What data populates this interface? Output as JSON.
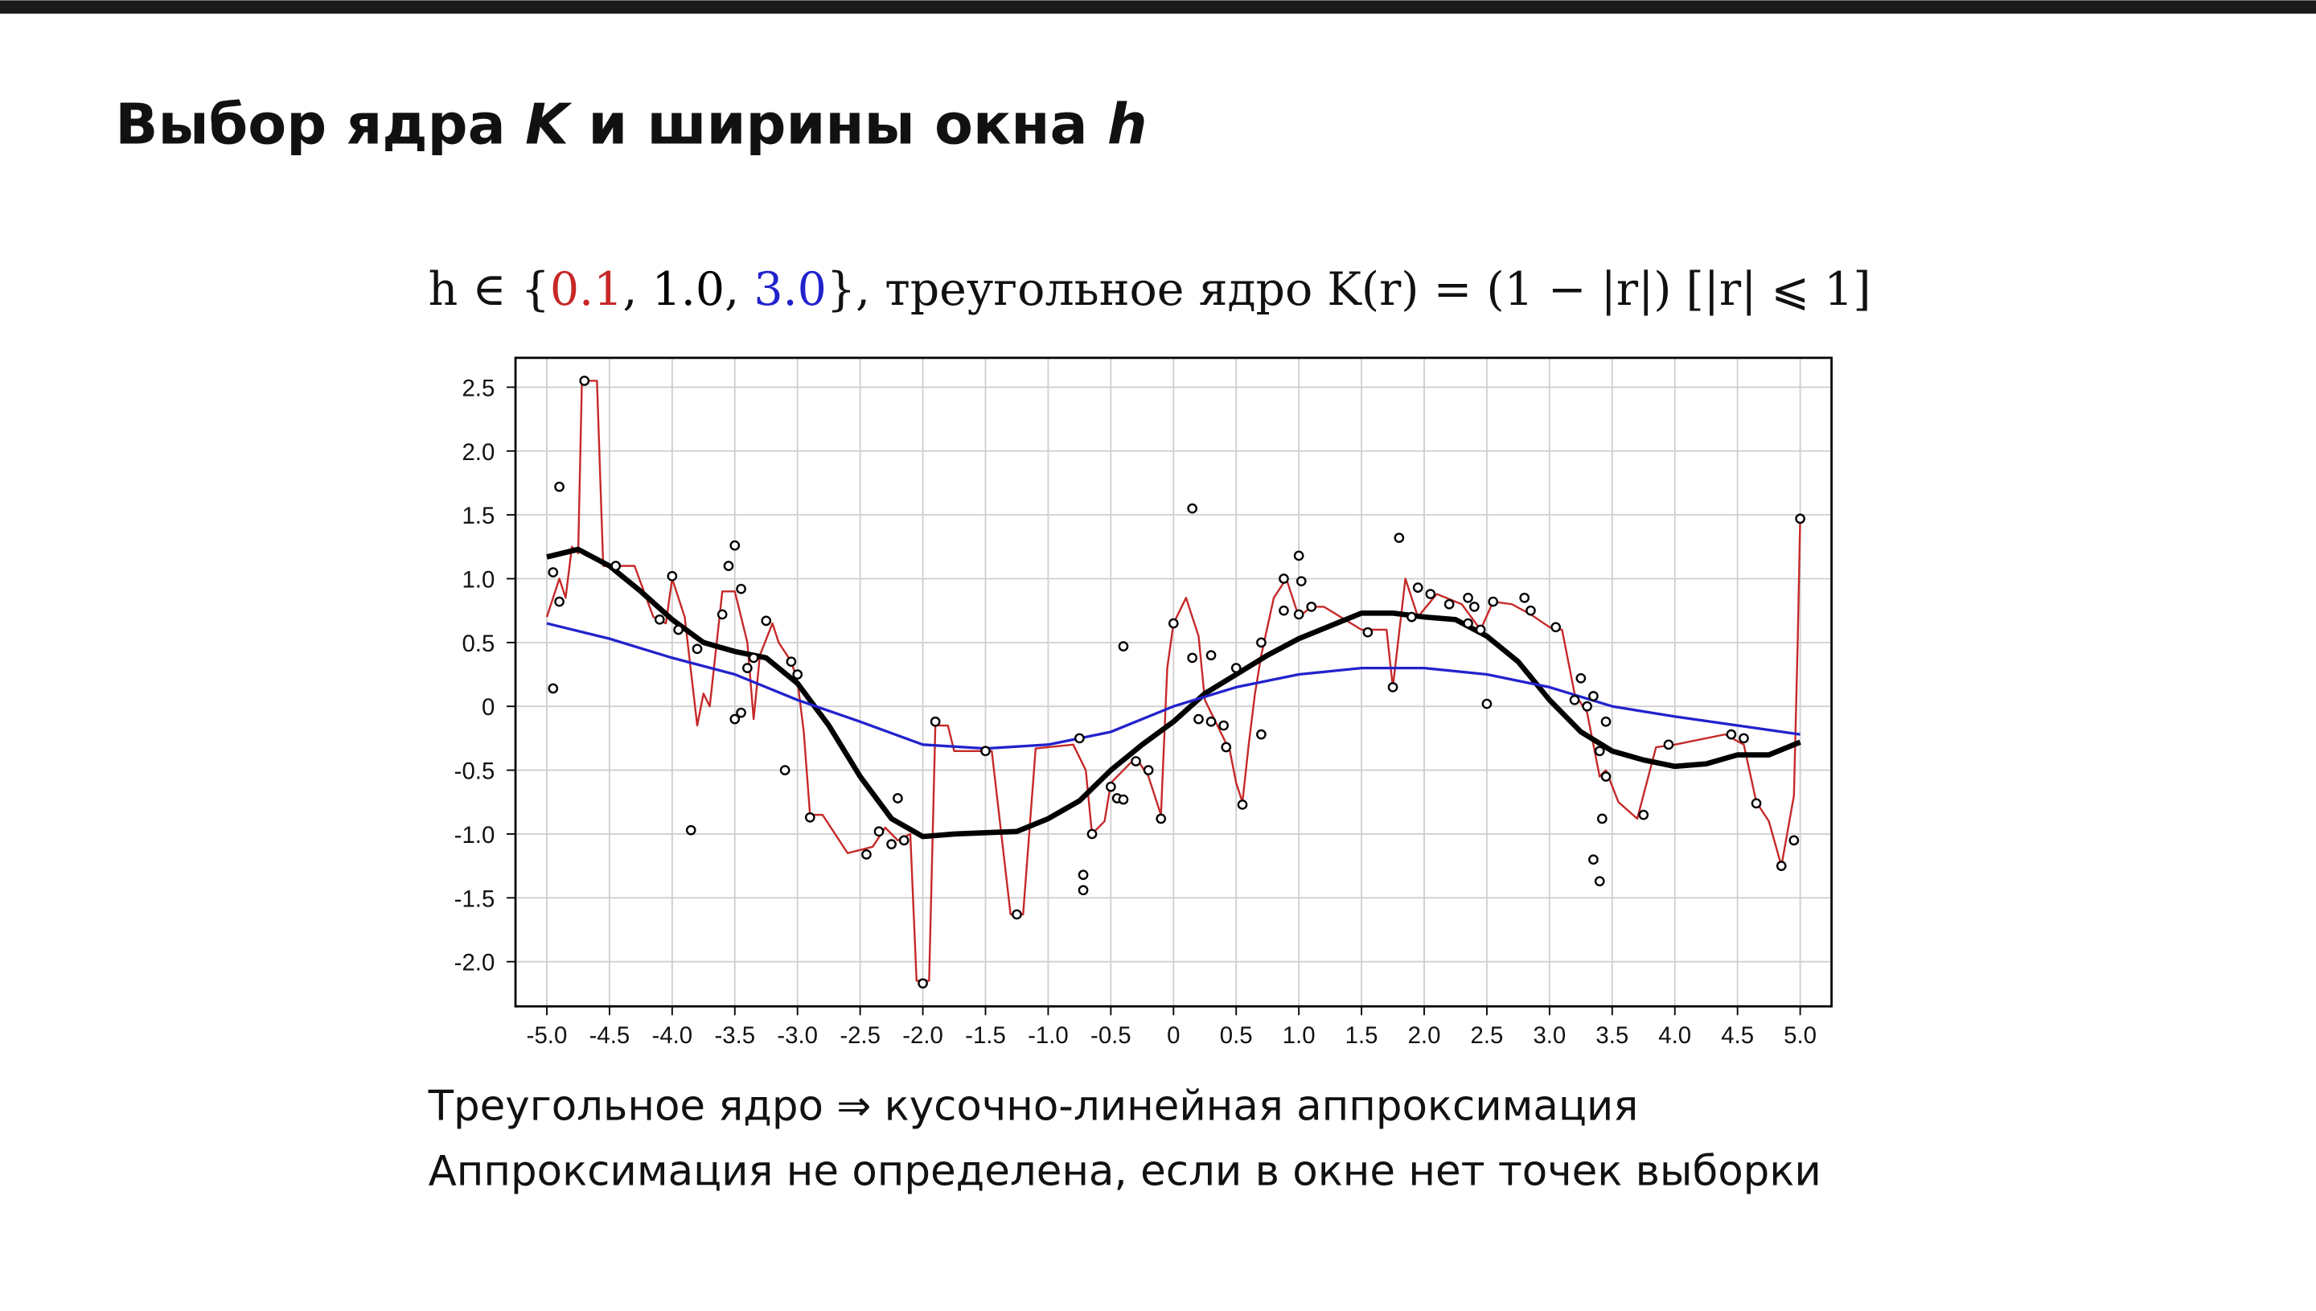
{
  "title": [
    "Выбор ядра ",
    "K",
    " и ширины окна ",
    "h"
  ],
  "formula": {
    "prefix": "h ∈ {",
    "separator": ", ",
    "suffix": "},  треугольное ядро K(r) = (1 − |r|) [|r| ⩽ 1]"
  },
  "chart_data": {
    "type": "line",
    "xlim": [
      -5.25,
      5.25
    ],
    "ylim": [
      -2.35,
      2.73
    ],
    "grid": true,
    "xticks": [
      {
        "value": -5,
        "label": "-5.0"
      },
      -4.5,
      {
        "value": -4,
        "label": "-4.0"
      },
      -3.5,
      {
        "value": -3,
        "label": "-3.0"
      },
      -2.5,
      {
        "value": -2,
        "label": "-2.0"
      },
      -1.5,
      {
        "value": -1,
        "label": "-1.0"
      },
      -0.5,
      0,
      0.5,
      {
        "value": 1,
        "label": "1.0"
      },
      1.5,
      {
        "value": 2,
        "label": "2.0"
      },
      2.5,
      {
        "value": 3,
        "label": "3.0"
      },
      3.5,
      {
        "value": 4,
        "label": "4.0"
      },
      4.5,
      {
        "value": 5,
        "label": "5.0"
      }
    ],
    "yticks": [
      2.5,
      {
        "value": 2,
        "label": "2.0"
      },
      1.5,
      {
        "value": 1,
        "label": "1.0"
      },
      0.5,
      0,
      -0.5,
      {
        "value": -1,
        "label": "-1.0"
      },
      -1.5,
      {
        "value": -2,
        "label": "-2.0"
      }
    ],
    "series": [
      {
        "name": "0.1",
        "color": "#c62828",
        "width": 1.3,
        "x": [
          -5,
          -4.9,
          -4.85,
          -4.8,
          -4.75,
          -4.72,
          -4.6,
          -4.55,
          -4.3,
          -4.15,
          -4.05,
          -4.0,
          -3.9,
          -3.8,
          -3.75,
          -3.7,
          -3.6,
          -3.5,
          -3.4,
          -3.35,
          -3.3,
          -3.2,
          -3.15,
          -3.05,
          -3.0,
          -2.95,
          -2.9,
          -2.8,
          -2.6,
          -2.4,
          -2.3,
          -2.2,
          -2.1,
          -2.05,
          -1.95,
          -1.9,
          -1.8,
          -1.75,
          -1.45,
          -1.3,
          -1.2,
          -1.1,
          -0.8,
          -0.7,
          -0.65,
          -0.55,
          -0.5,
          -0.4,
          -0.3,
          -0.2,
          -0.1,
          -0.05,
          0.0,
          0.1,
          0.2,
          0.25,
          0.35,
          0.45,
          0.5,
          0.55,
          0.6,
          0.65,
          0.7,
          0.8,
          0.9,
          1.0,
          1.1,
          1.2,
          1.5,
          1.7,
          1.75,
          1.85,
          1.95,
          2.1,
          2.3,
          2.45,
          2.55,
          2.7,
          2.85,
          3.0,
          3.1,
          3.2,
          3.3,
          3.4,
          3.45,
          3.55,
          3.7,
          3.85,
          4.0,
          4.4,
          4.55,
          4.65,
          4.75,
          4.85,
          4.95,
          4.98,
          5.0
        ],
        "values": [
          0.7,
          1.0,
          0.85,
          1.25,
          1.2,
          2.55,
          2.55,
          1.1,
          1.1,
          0.7,
          0.65,
          1.0,
          0.7,
          -0.15,
          0.1,
          0.0,
          0.9,
          0.9,
          0.5,
          -0.1,
          0.4,
          0.65,
          0.5,
          0.35,
          0.2,
          -0.2,
          -0.85,
          -0.85,
          -1.15,
          -1.1,
          -0.95,
          -1.05,
          -1.0,
          -2.15,
          -2.15,
          -0.15,
          -0.15,
          -0.35,
          -0.35,
          -1.63,
          -1.63,
          -0.33,
          -0.3,
          -0.5,
          -1.0,
          -0.9,
          -0.6,
          -0.5,
          -0.4,
          -0.55,
          -0.85,
          0.3,
          0.65,
          0.85,
          0.55,
          0.05,
          -0.15,
          -0.35,
          -0.6,
          -0.75,
          -0.3,
          0.1,
          0.4,
          0.85,
          1.0,
          0.7,
          0.78,
          0.78,
          0.6,
          0.6,
          0.15,
          1.0,
          0.7,
          0.88,
          0.8,
          0.6,
          0.82,
          0.8,
          0.72,
          0.62,
          0.6,
          0.1,
          -0.05,
          -0.55,
          -0.5,
          -0.75,
          -0.88,
          -0.32,
          -0.3,
          -0.22,
          -0.3,
          -0.75,
          -0.9,
          -1.25,
          -0.7,
          0.5,
          1.47
        ]
      },
      {
        "name": "1.0",
        "color": "#000000",
        "width": 3.6,
        "x": [
          -5,
          -4.75,
          -4.5,
          -4.25,
          -4,
          -3.75,
          -3.5,
          -3.25,
          -3,
          -2.75,
          -2.5,
          -2.25,
          -2,
          -1.75,
          -1.5,
          -1.25,
          -1,
          -0.75,
          -0.5,
          -0.25,
          0,
          0.25,
          0.5,
          0.75,
          1,
          1.25,
          1.5,
          1.75,
          2,
          2.25,
          2.5,
          2.75,
          3,
          3.25,
          3.5,
          3.75,
          4,
          4.25,
          4.5,
          4.75,
          5
        ],
        "values": [
          1.17,
          1.23,
          1.1,
          0.9,
          0.68,
          0.5,
          0.43,
          0.38,
          0.18,
          -0.15,
          -0.55,
          -0.88,
          -1.02,
          -1.0,
          -0.99,
          -0.98,
          -0.88,
          -0.74,
          -0.5,
          -0.3,
          -0.12,
          0.1,
          0.25,
          0.4,
          0.53,
          0.63,
          0.73,
          0.73,
          0.7,
          0.68,
          0.55,
          0.35,
          0.05,
          -0.2,
          -0.35,
          -0.42,
          -0.47,
          -0.45,
          -0.38,
          -0.38,
          -0.28
        ]
      },
      {
        "name": "3.0",
        "color": "#2222cc",
        "width": 1.8,
        "x": [
          -5,
          -4.5,
          -4,
          -3.5,
          -3,
          -2.5,
          -2,
          -1.5,
          -1,
          -0.5,
          0,
          0.5,
          1,
          1.5,
          2,
          2.5,
          3,
          3.5,
          4,
          4.5,
          5
        ],
        "values": [
          0.65,
          0.53,
          0.38,
          0.25,
          0.05,
          -0.12,
          -0.3,
          -0.33,
          -0.3,
          -0.2,
          0.0,
          0.15,
          0.25,
          0.3,
          0.3,
          0.25,
          0.15,
          0.0,
          -0.08,
          -0.15,
          -0.22
        ]
      }
    ],
    "points": {
      "x": [
        -4.95,
        -4.95,
        -4.9,
        -4.9,
        -4.7,
        -4.45,
        -4.1,
        -4.0,
        -3.95,
        -3.85,
        -3.8,
        -3.6,
        -3.55,
        -3.5,
        -3.5,
        -3.45,
        -3.45,
        -3.4,
        -3.35,
        -3.25,
        -3.1,
        -3.05,
        -3.0,
        -2.9,
        -2.45,
        -2.35,
        -2.25,
        -2.2,
        -2.15,
        -2.0,
        -1.9,
        -1.5,
        -1.25,
        -0.75,
        -0.72,
        -0.72,
        -0.65,
        -0.5,
        -0.45,
        -0.4,
        -0.4,
        -0.3,
        -0.2,
        -0.1,
        0.0,
        0.15,
        0.15,
        0.2,
        0.3,
        0.3,
        0.4,
        0.42,
        0.5,
        0.55,
        0.7,
        0.7,
        0.88,
        0.88,
        1.0,
        1.0,
        1.02,
        1.1,
        1.55,
        1.75,
        1.8,
        1.9,
        1.95,
        2.05,
        2.2,
        2.35,
        2.35,
        2.4,
        2.45,
        2.5,
        2.55,
        2.8,
        2.85,
        3.05,
        3.2,
        3.25,
        3.3,
        3.35,
        3.35,
        3.4,
        3.4,
        3.42,
        3.45,
        3.45,
        3.75,
        3.95,
        4.45,
        4.55,
        4.65,
        4.85,
        4.95,
        5.0
      ],
      "y": [
        1.05,
        0.14,
        1.72,
        0.82,
        2.55,
        1.1,
        0.68,
        1.02,
        0.6,
        -0.97,
        0.45,
        0.72,
        1.1,
        1.26,
        -0.1,
        0.92,
        -0.05,
        0.3,
        0.38,
        0.67,
        -0.5,
        0.35,
        0.25,
        -0.87,
        -1.16,
        -0.98,
        -1.08,
        -0.72,
        -1.05,
        -2.17,
        -0.12,
        -0.35,
        -1.63,
        -0.25,
        -1.32,
        -1.44,
        -1.0,
        -0.63,
        -0.72,
        0.47,
        -0.73,
        -0.43,
        -0.5,
        -0.88,
        0.65,
        1.55,
        0.38,
        -0.1,
        0.4,
        -0.12,
        -0.15,
        -0.32,
        0.3,
        -0.77,
        -0.22,
        0.5,
        0.75,
        1.0,
        1.18,
        0.72,
        0.98,
        0.78,
        0.58,
        0.15,
        1.32,
        0.7,
        0.93,
        0.88,
        0.8,
        0.65,
        0.85,
        0.78,
        0.6,
        0.02,
        0.82,
        0.85,
        0.75,
        0.62,
        0.05,
        0.22,
        0.0,
        0.08,
        -1.2,
        -0.35,
        -1.37,
        -0.88,
        -0.12,
        -0.55,
        -0.85,
        -0.3,
        -0.22,
        -0.25,
        -0.76,
        -1.25,
        -1.05,
        1.47
      ]
    }
  },
  "bullets": [
    "Треугольное ядро ⇒ кусочно-линейная аппроксимация",
    "Аппроксимация не определена, если в окне нет точек выборки"
  ]
}
